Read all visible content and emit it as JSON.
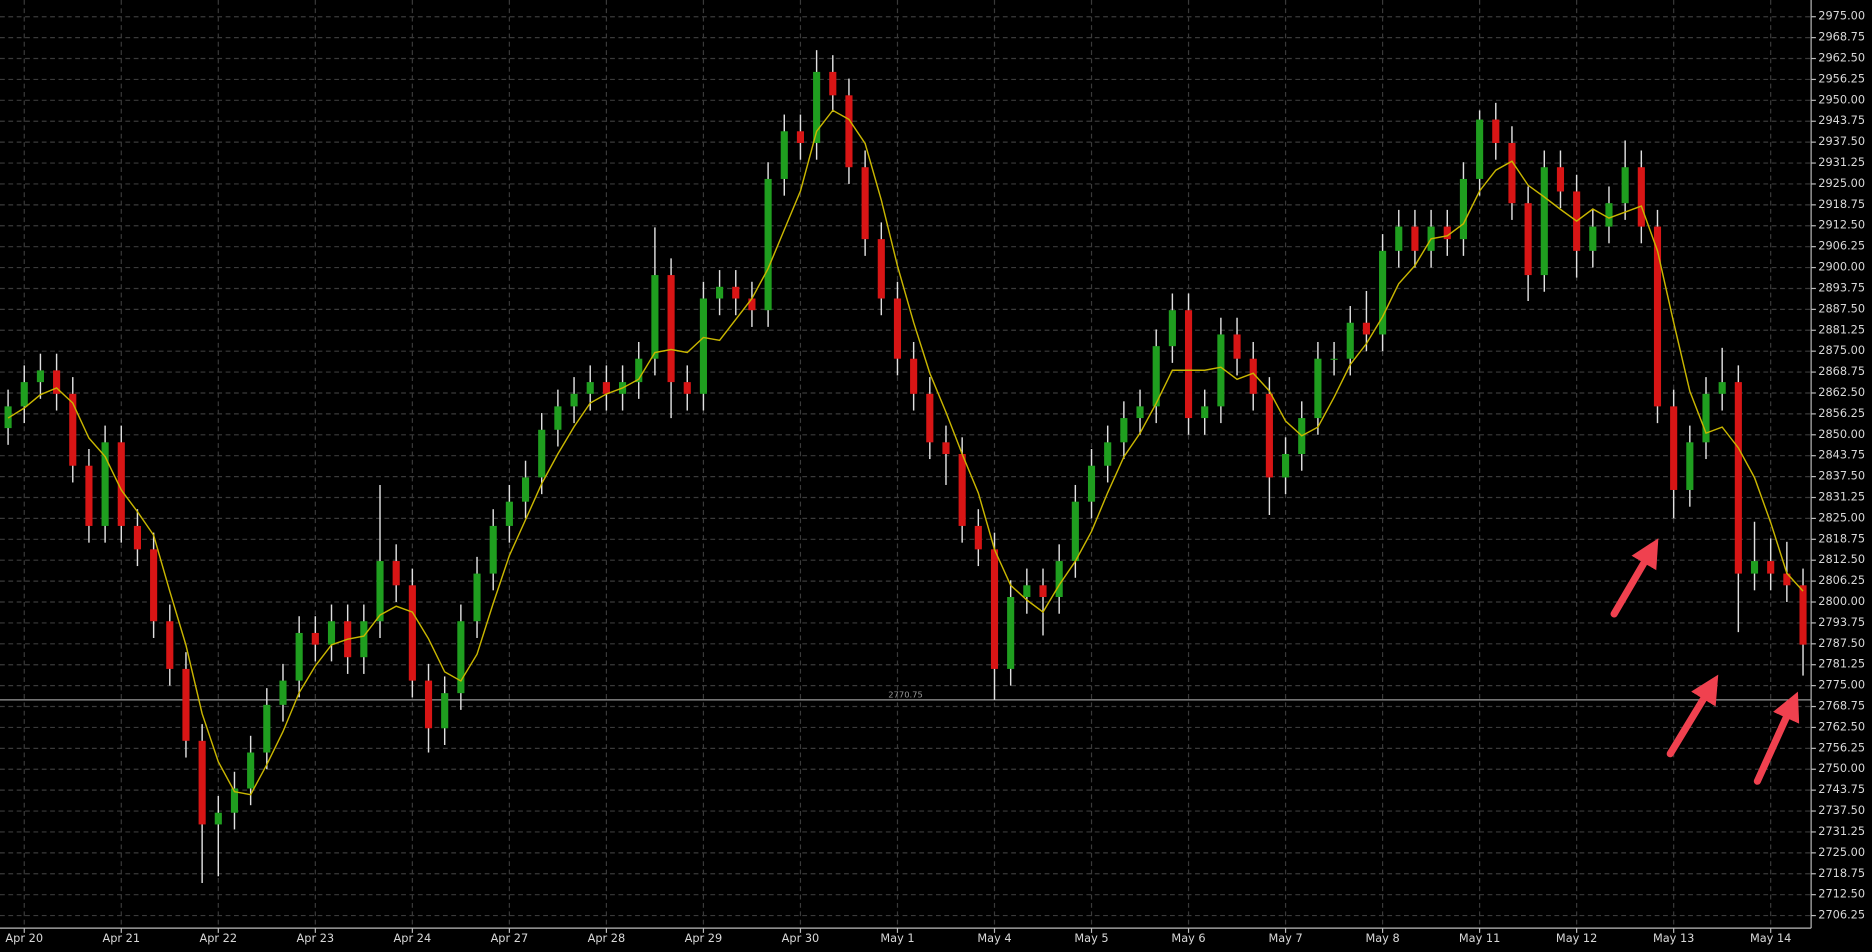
{
  "chart_data": {
    "type": "candlestick",
    "categories": [
      null,
      "Apr 20",
      null,
      null,
      null,
      null,
      null,
      "Apr 21",
      null,
      null,
      null,
      null,
      null,
      "Apr 22",
      null,
      null,
      null,
      null,
      null,
      "Apr 23",
      null,
      null,
      null,
      null,
      null,
      "Apr 24",
      null,
      null,
      null,
      null,
      null,
      "Apr 27",
      null,
      null,
      null,
      null,
      null,
      "Apr 28",
      null,
      null,
      null,
      null,
      null,
      "Apr 29",
      null,
      null,
      null,
      null,
      null,
      "Apr 30",
      null,
      null,
      null,
      null,
      null,
      "May 1",
      null,
      null,
      null,
      null,
      null,
      "May 4",
      null,
      null,
      null,
      null,
      null,
      "May 5",
      null,
      null,
      null,
      null,
      null,
      "May 6",
      null,
      null,
      null,
      null,
      null,
      "May 7",
      null,
      null,
      null,
      null,
      null,
      "May 8",
      null,
      null,
      null,
      null,
      null,
      "May 11",
      null,
      null,
      null,
      null,
      null,
      "May 12",
      null,
      null,
      null,
      null,
      null,
      "May 13",
      null,
      null,
      null,
      null,
      null,
      "May 14",
      null,
      null
    ],
    "open": [
      2852,
      2858.5,
      2865.75,
      2869.25,
      2862.25,
      2840.75,
      2822.75,
      2847.75,
      2822.75,
      2815.75,
      2794.25,
      2780,
      2758.5,
      2733.5,
      2737,
      2744.25,
      2755,
      2769.25,
      2776.5,
      2790.75,
      2787.25,
      2794.25,
      2783.5,
      2794.25,
      2812.25,
      2805,
      2776.5,
      2762.25,
      2772.75,
      2794.25,
      2808.5,
      2822.75,
      2830,
      2837.25,
      2851.5,
      2858.5,
      2862.25,
      2865.75,
      2862.25,
      2865.75,
      2872.75,
      2897.75,
      2865.75,
      2862.25,
      2890.75,
      2894.25,
      2890.75,
      2887.25,
      2926.5,
      2940.75,
      2937.25,
      2958.5,
      2951.5,
      2930,
      2908.5,
      2890.75,
      2872.75,
      2862.25,
      2847.75,
      2844.25,
      2822.75,
      2815.75,
      2780,
      2801.5,
      2805,
      2801.5,
      2812.25,
      2830,
      2840.75,
      2847.75,
      2855,
      2858.5,
      2876.5,
      2887.25,
      2855,
      2858.5,
      2880,
      2872.75,
      2862.25,
      2837.25,
      2844.25,
      2855,
      2872.75,
      2872.75,
      2883.5,
      2880,
      2905,
      2912.25,
      2905,
      2912.25,
      2908.5,
      2926.5,
      2944.25,
      2937.25,
      2919.25,
      2897.75,
      2930,
      2922.75,
      2905,
      2912.25,
      2919.25,
      2930,
      2912.25,
      2858.5,
      2833.5,
      2847.75,
      2862.25,
      2865.75,
      2808.5,
      2812.25,
      2808.5,
      2805
    ],
    "high": [
      2863.5,
      2870.75,
      2874.25,
      2874.25,
      2867.25,
      2845.75,
      2852.75,
      2852.75,
      2827.75,
      2820.75,
      2799.25,
      2785,
      2763.5,
      2742,
      2749.25,
      2760,
      2774.25,
      2781.5,
      2795.75,
      2795.75,
      2799.25,
      2799.25,
      2799.25,
      2835,
      2817.25,
      2810,
      2781.5,
      2777.75,
      2799.25,
      2813.5,
      2827.75,
      2835,
      2842.25,
      2856.5,
      2863.5,
      2867.25,
      2870.75,
      2870.75,
      2870.75,
      2877.75,
      2912,
      2902.75,
      2870.75,
      2895.75,
      2899.25,
      2899.25,
      2895.75,
      2931.5,
      2945.75,
      2945.75,
      2965,
      2963.5,
      2956.5,
      2935,
      2913.5,
      2895.75,
      2877.75,
      2867.25,
      2852.75,
      2849.25,
      2827.75,
      2820.75,
      2806.5,
      2810,
      2810,
      2817.25,
      2835,
      2845.75,
      2852.75,
      2860,
      2863.5,
      2881.5,
      2892.25,
      2892.25,
      2863.5,
      2885,
      2885,
      2877.75,
      2867.25,
      2849.25,
      2860,
      2877.75,
      2877.75,
      2888.5,
      2893,
      2910,
      2917.25,
      2917.25,
      2917.25,
      2917.25,
      2931.5,
      2947,
      2949.25,
      2942.25,
      2924.25,
      2935,
      2935,
      2927.75,
      2917.25,
      2924.25,
      2938,
      2935,
      2917.25,
      2863.5,
      2852.75,
      2867.25,
      2876,
      2870.75,
      2824,
      2819,
      2818,
      2810
    ],
    "low": [
      2847,
      2853.5,
      2860.75,
      2857.25,
      2835.75,
      2817.75,
      2817.75,
      2817.75,
      2810.75,
      2789.25,
      2775,
      2753.5,
      2716,
      2718,
      2732,
      2739.25,
      2750,
      2764.25,
      2771.5,
      2782.25,
      2782.25,
      2778.5,
      2778.5,
      2789.25,
      2800,
      2771.5,
      2755,
      2757.25,
      2767.75,
      2789.25,
      2803.5,
      2817.75,
      2825,
      2832.25,
      2846.5,
      2853.5,
      2857.25,
      2857.25,
      2857.25,
      2860.75,
      2867.75,
      2855,
      2857.25,
      2857.25,
      2885.75,
      2885.75,
      2882.25,
      2882.25,
      2921.5,
      2932.25,
      2932.25,
      2946.5,
      2925,
      2903.5,
      2885.75,
      2867.75,
      2857.25,
      2842.75,
      2835,
      2817.75,
      2810.75,
      2770.75,
      2775,
      2796.5,
      2790,
      2796.5,
      2807.25,
      2825,
      2835.75,
      2842.75,
      2850,
      2853.5,
      2871.5,
      2850,
      2850,
      2853.5,
      2867.75,
      2857.25,
      2826,
      2832.25,
      2839.25,
      2850,
      2867.75,
      2867.75,
      2875,
      2875,
      2900,
      2900,
      2900,
      2903.5,
      2903.5,
      2921.5,
      2932.25,
      2914.25,
      2890,
      2892.75,
      2917.75,
      2897,
      2900,
      2907.25,
      2914.25,
      2907.25,
      2853.5,
      2825,
      2828.5,
      2842.75,
      2857.25,
      2791,
      2803.5,
      2803.5,
      2800,
      2778
    ],
    "close": [
      2858.5,
      2865.75,
      2869.25,
      2862.25,
      2840.75,
      2822.75,
      2847.75,
      2822.75,
      2815.75,
      2794.25,
      2780,
      2758.5,
      2733.5,
      2737,
      2744.25,
      2755,
      2769.25,
      2776.5,
      2790.75,
      2787.25,
      2794.25,
      2783.5,
      2794.25,
      2812.25,
      2805,
      2776.5,
      2762.25,
      2772.75,
      2794.25,
      2808.5,
      2822.75,
      2830,
      2837.25,
      2851.5,
      2858.5,
      2862.25,
      2865.75,
      2862.25,
      2865.75,
      2872.75,
      2897.75,
      2865.75,
      2862.25,
      2890.75,
      2894.25,
      2890.75,
      2887.25,
      2926.5,
      2940.75,
      2937.25,
      2958.5,
      2951.5,
      2930,
      2908.5,
      2890.75,
      2872.75,
      2862.25,
      2847.75,
      2844.25,
      2822.75,
      2815.75,
      2780,
      2801.5,
      2805,
      2801.5,
      2812.25,
      2830,
      2840.75,
      2847.75,
      2855,
      2858.5,
      2876.5,
      2887.25,
      2855,
      2858.5,
      2880,
      2872.75,
      2862.25,
      2837.25,
      2844.25,
      2855,
      2872.75,
      2872.75,
      2883.5,
      2880,
      2905,
      2912.25,
      2905,
      2912.25,
      2908.5,
      2926.5,
      2944.25,
      2937.25,
      2919.25,
      2897.75,
      2930,
      2922.75,
      2905,
      2912.25,
      2919.25,
      2930,
      2912.25,
      2858.5,
      2833.5,
      2847.75,
      2862.25,
      2865.75,
      2808.5,
      2812.25,
      2808.5,
      2805,
      2787.25
    ],
    "up_color": "#1f9e1f",
    "down_color": "#d81515",
    "wick_color": "#e0e0e0",
    "overlay": {
      "color": "#c9b600",
      "values": [
        2855,
        2858,
        2862,
        2864,
        2859.5,
        2849,
        2843.5,
        2833.5,
        2827,
        2820,
        2803.2,
        2787.1,
        2766.6,
        2752.25,
        2743.3,
        2742.4,
        2751.4,
        2761.25,
        2772.9,
        2780.9,
        2787.2,
        2788.9,
        2789.8,
        2796.1,
        2798.75,
        2797,
        2789,
        2779.1,
        2776.4,
        2784.4,
        2799.6,
        2813.9,
        2824.6,
        2835.4,
        2844.3,
        2852.4,
        2859.5,
        2862.2,
        2864,
        2866.6,
        2874.6,
        2875.5,
        2874.6,
        2879.1,
        2878.25,
        2884.5,
        2890.75,
        2899.7,
        2911.3,
        2922.9,
        2940.75,
        2947,
        2944.3,
        2937.1,
        2920.2,
        2900.5,
        2883.6,
        2868.4,
        2856.75,
        2844.25,
        2832.6,
        2815.7,
        2805,
        2800.6,
        2797,
        2805.1,
        2812.2,
        2821.1,
        2832.7,
        2843.4,
        2850.5,
        2859.4,
        2869.3,
        2869.3,
        2869.3,
        2870.2,
        2866.6,
        2868.4,
        2863.1,
        2854.1,
        2849.7,
        2852.3,
        2861.2,
        2871,
        2877.25,
        2885.3,
        2895.2,
        2900.6,
        2908.6,
        2909.5,
        2913.1,
        2922.9,
        2929.1,
        2931.8,
        2924.6,
        2921.1,
        2917.4,
        2913.9,
        2917.5,
        2914.8,
        2916.6,
        2918.4,
        2905,
        2883.6,
        2863,
        2850.5,
        2852.3,
        2846.1,
        2837.2,
        2823.75,
        2808.6,
        2803.25
      ]
    },
    "reference_line": 2770.75,
    "ylim": [
      2702.5,
      2980
    ],
    "yticks": [
      2706.25,
      {
        "value": 2712.5,
        "label": "2712.50"
      },
      2718.75,
      {
        "value": 2725,
        "label": "2725.00"
      },
      2731.25,
      {
        "value": 2737.5,
        "label": "2737.50"
      },
      2743.75,
      {
        "value": 2750,
        "label": "2750.00"
      },
      2756.25,
      {
        "value": 2762.5,
        "label": "2762.50"
      },
      2768.75,
      {
        "value": 2775,
        "label": "2775.00"
      },
      2781.25,
      {
        "value": 2787.5,
        "label": "2787.50"
      },
      2793.75,
      {
        "value": 2800,
        "label": "2800.00"
      },
      2806.25,
      {
        "value": 2812.5,
        "label": "2812.50"
      },
      2818.75,
      {
        "value": 2825,
        "label": "2825.00"
      },
      2831.25,
      {
        "value": 2837.5,
        "label": "2837.50"
      },
      2843.75,
      {
        "value": 2850,
        "label": "2850.00"
      },
      2856.25,
      {
        "value": 2862.5,
        "label": "2862.50"
      },
      2868.75,
      {
        "value": 2875,
        "label": "2875.00"
      },
      2881.25,
      {
        "value": 2887.5,
        "label": "2887.50"
      },
      2893.75,
      {
        "value": 2900,
        "label": "2900.00"
      },
      2906.25,
      {
        "value": 2912.5,
        "label": "2912.50"
      },
      2918.75,
      {
        "value": 2925,
        "label": "2925.00"
      },
      2931.25,
      {
        "value": 2937.5,
        "label": "2937.50"
      },
      2943.75,
      {
        "value": 2950,
        "label": "2950.00"
      },
      2956.25,
      {
        "value": 2962.5,
        "label": "2962.50"
      },
      2968.75,
      {
        "value": 2975,
        "label": "2975.00"
      }
    ],
    "grid": true
  }
}
